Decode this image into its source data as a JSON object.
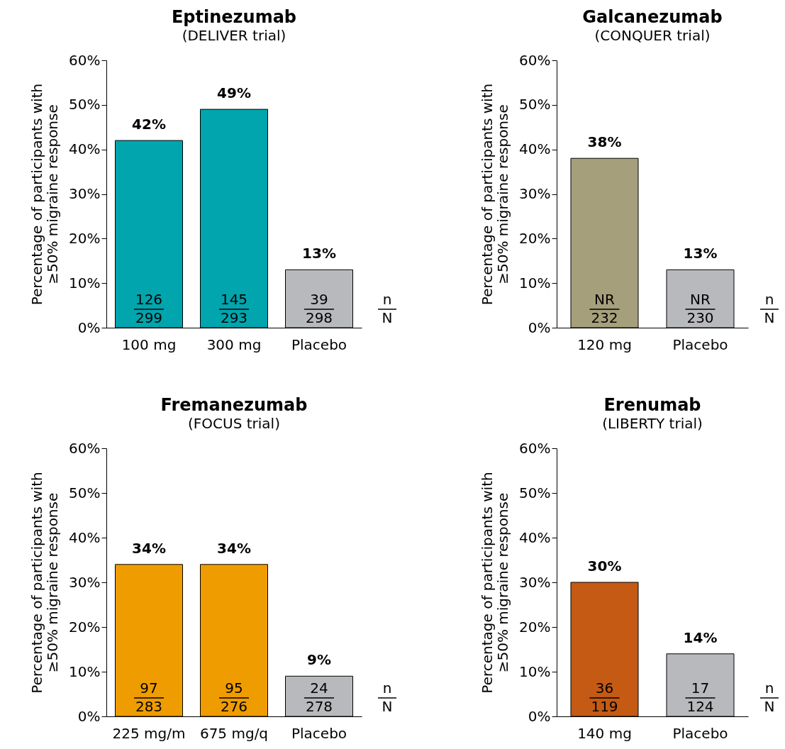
{
  "chart_data": [
    {
      "type": "bar",
      "title": "Eptinezumab",
      "subtitle": "(DELIVER trial)",
      "ylabel": "Percentage of participants with\n≥50% migraine response",
      "categories": [
        "100 mg",
        "300 mg",
        "Placebo"
      ],
      "values": [
        42,
        49,
        13
      ],
      "colors": [
        "#00a5ad",
        "#00a5ad",
        "#b8b9bc"
      ],
      "value_labels": [
        "42%",
        "49%",
        "13%"
      ],
      "ylim": [
        0,
        60
      ],
      "yticks": [
        {
          "value": 0,
          "label": "0%"
        },
        {
          "value": 10,
          "label": "10%"
        },
        {
          "value": 20,
          "label": "20%"
        },
        {
          "value": 30,
          "label": "30%"
        },
        {
          "value": 40,
          "label": "40%"
        },
        {
          "value": 50,
          "label": "50%"
        },
        {
          "value": 60,
          "label": "60%"
        }
      ],
      "annotations": [
        "126",
        "299",
        "145",
        "293",
        "39",
        "298",
        "n",
        "N"
      ]
    },
    {
      "type": "bar",
      "title": "Galcanezumab",
      "subtitle": "(CONQUER trial)",
      "ylabel": "Percentage of participants with\n≥50% migraine response",
      "categories": [
        "120 mg",
        "Placebo"
      ],
      "values": [
        38,
        13
      ],
      "colors": [
        "#a69f7b",
        "#b8b9bc"
      ],
      "value_labels": [
        "38%",
        "13%"
      ],
      "ylim": [
        0,
        60
      ],
      "yticks": [
        {
          "value": 0,
          "label": "0%"
        },
        {
          "value": 10,
          "label": "10%"
        },
        {
          "value": 20,
          "label": "20%"
        },
        {
          "value": 30,
          "label": "30%"
        },
        {
          "value": 40,
          "label": "40%"
        },
        {
          "value": 50,
          "label": "50%"
        },
        {
          "value": 60,
          "label": "60%"
        }
      ],
      "annotations": [
        "NR",
        "232",
        "NR",
        "230",
        "n",
        "N"
      ]
    },
    {
      "type": "bar",
      "title": "Fremanezumab",
      "subtitle": "(FOCUS trial)",
      "ylabel": "Percentage of participants with\n≥50% migraine response",
      "categories": [
        "225 mg/m",
        "675 mg/q",
        "Placebo"
      ],
      "values": [
        34,
        34,
        9
      ],
      "colors": [
        "#ef9c00",
        "#ef9c00",
        "#b8b9bc"
      ],
      "value_labels": [
        "34%",
        "34%",
        "9%"
      ],
      "ylim": [
        0,
        60
      ],
      "yticks": [
        {
          "value": 0,
          "label": "0%"
        },
        {
          "value": 10,
          "label": "10%"
        },
        {
          "value": 20,
          "label": "20%"
        },
        {
          "value": 30,
          "label": "30%"
        },
        {
          "value": 40,
          "label": "40%"
        },
        {
          "value": 50,
          "label": "50%"
        },
        {
          "value": 60,
          "label": "60%"
        }
      ],
      "annotations": [
        "97",
        "283",
        "95",
        "276",
        "24",
        "278",
        "n",
        "N"
      ]
    },
    {
      "type": "bar",
      "title": "Erenumab",
      "subtitle": "(LIBERTY trial)",
      "ylabel": "Percentage of participants with\n≥50% migraine response",
      "categories": [
        "140 mg",
        "Placebo"
      ],
      "values": [
        30,
        14
      ],
      "colors": [
        "#c45a13",
        "#b8b9bc"
      ],
      "value_labels": [
        "30%",
        "14%"
      ],
      "ylim": [
        0,
        60
      ],
      "yticks": [
        {
          "value": 0,
          "label": "0%"
        },
        {
          "value": 10,
          "label": "10%"
        },
        {
          "value": 20,
          "label": "20%"
        },
        {
          "value": 30,
          "label": "30%"
        },
        {
          "value": 40,
          "label": "40%"
        },
        {
          "value": 50,
          "label": "50%"
        },
        {
          "value": 60,
          "label": "60%"
        }
      ],
      "annotations": [
        "36",
        "119",
        "17",
        "124",
        "n",
        "N"
      ]
    }
  ]
}
